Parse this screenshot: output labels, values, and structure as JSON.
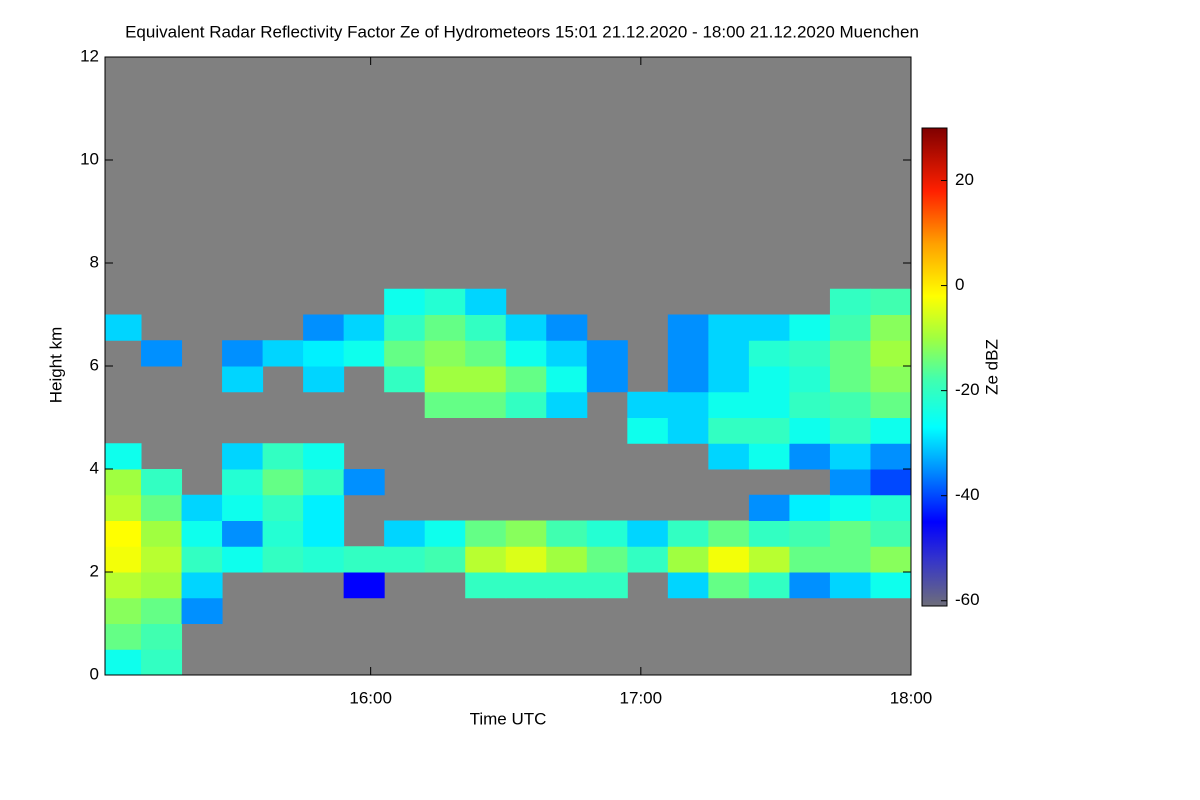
{
  "chart_data": {
    "type": "heatmap",
    "title": "Equivalent Radar Reflectivity Factor Ze of Hydrometeors   15:01 21.12.2020 - 18:00 21.12.2020 Muenchen",
    "x_label": "Time UTC",
    "y_label": "Height km",
    "colorbar_label": "Ze dBZ",
    "xlim": [
      15.0167,
      18.0
    ],
    "xticks": [
      {
        "value": 16,
        "label": "16:00"
      },
      {
        "value": 17,
        "label": "17:00"
      },
      {
        "value": 18,
        "label": "18:00"
      }
    ],
    "ylim": [
      0,
      12
    ],
    "yticks": [
      0,
      2,
      4,
      6,
      8,
      10,
      12
    ],
    "zlim": [
      -61,
      30
    ],
    "zticks": [
      -60,
      -40,
      -20,
      0,
      20
    ],
    "background": "#808080",
    "colorscale": [
      [
        -61,
        "#6e6e7a"
      ],
      [
        -52,
        "#3333cc"
      ],
      [
        -45,
        "#0000ff"
      ],
      [
        -35,
        "#0090ff"
      ],
      [
        -27,
        "#00ffff"
      ],
      [
        -18,
        "#40ffb0"
      ],
      [
        -10,
        "#a0ff40"
      ],
      [
        -2,
        "#ffff00"
      ],
      [
        8,
        "#ffa000"
      ],
      [
        18,
        "#ff2000"
      ],
      [
        30,
        "#800000"
      ]
    ],
    "x": [
      15.075,
      15.225,
      15.375,
      15.525,
      15.675,
      15.825,
      15.975,
      16.125,
      16.275,
      16.425,
      16.575,
      16.725,
      16.875,
      17.025,
      17.175,
      17.325,
      17.475,
      17.625,
      17.775,
      17.925
    ],
    "y": [
      0.25,
      0.75,
      1.25,
      1.75,
      2.25,
      2.75,
      3.25,
      3.75,
      4.25,
      4.75,
      5.25,
      5.75,
      6.25,
      6.75,
      7.25,
      7.75,
      8.25,
      8.75,
      9.25,
      9.75,
      10.25,
      10.75,
      11.25,
      11.75
    ],
    "values": [
      [
        -25,
        -20,
        null,
        null,
        null,
        null,
        null,
        null,
        null,
        null,
        null,
        null,
        null,
        null,
        null,
        null,
        null,
        null,
        null,
        null
      ],
      [
        -15,
        -18,
        null,
        null,
        null,
        null,
        null,
        null,
        null,
        null,
        null,
        null,
        null,
        null,
        null,
        null,
        null,
        null,
        null,
        null
      ],
      [
        -12,
        -15,
        -35,
        null,
        null,
        null,
        null,
        null,
        null,
        null,
        null,
        null,
        null,
        null,
        null,
        null,
        null,
        null,
        null,
        null
      ],
      [
        -8,
        -10,
        -30,
        null,
        null,
        null,
        -45,
        null,
        null,
        -20,
        -20,
        -20,
        -20,
        null,
        -30,
        -15,
        -20,
        -35,
        -30,
        -25
      ],
      [
        -3,
        -8,
        -20,
        -25,
        -20,
        -22,
        -20,
        -20,
        -18,
        -8,
        -5,
        -10,
        -15,
        -20,
        -10,
        -3,
        -8,
        -15,
        -15,
        -12
      ],
      [
        -2,
        -10,
        -25,
        -35,
        -22,
        -28,
        null,
        -30,
        -25,
        -15,
        -12,
        -18,
        -22,
        -30,
        -20,
        -15,
        -20,
        -18,
        -15,
        -18
      ],
      [
        -8,
        -15,
        -30,
        -25,
        -20,
        -28,
        null,
        null,
        null,
        null,
        null,
        null,
        null,
        null,
        null,
        null,
        -35,
        -28,
        -25,
        -22
      ],
      [
        -10,
        -20,
        null,
        -22,
        -15,
        -20,
        -35,
        null,
        null,
        null,
        null,
        null,
        null,
        null,
        null,
        null,
        null,
        null,
        -35,
        -40
      ],
      [
        -25,
        null,
        null,
        -30,
        -20,
        -25,
        null,
        null,
        null,
        null,
        null,
        null,
        null,
        null,
        null,
        -30,
        -25,
        -35,
        -30,
        -35
      ],
      [
        null,
        null,
        null,
        null,
        null,
        null,
        null,
        null,
        null,
        null,
        null,
        null,
        null,
        -25,
        -30,
        -20,
        -20,
        -25,
        -20,
        -25
      ],
      [
        null,
        null,
        null,
        null,
        null,
        null,
        null,
        null,
        -15,
        -15,
        -20,
        -30,
        null,
        -30,
        -30,
        -25,
        -25,
        -20,
        -18,
        -15
      ],
      [
        null,
        null,
        null,
        -30,
        null,
        -30,
        null,
        -20,
        -10,
        -10,
        -15,
        -25,
        -35,
        null,
        -35,
        -30,
        -25,
        -22,
        -15,
        -12
      ],
      [
        null,
        -35,
        null,
        -35,
        -30,
        -28,
        -25,
        -15,
        -12,
        -15,
        -25,
        -30,
        -35,
        null,
        -35,
        -30,
        -22,
        -20,
        -15,
        -10
      ],
      [
        -30,
        null,
        null,
        null,
        null,
        -35,
        -30,
        -20,
        -15,
        -20,
        -30,
        -35,
        null,
        null,
        -35,
        -30,
        -30,
        -25,
        -18,
        -12
      ],
      [
        null,
        null,
        null,
        null,
        null,
        null,
        null,
        -25,
        -22,
        -30,
        null,
        null,
        null,
        null,
        null,
        null,
        null,
        null,
        -20,
        -18
      ],
      [
        null,
        null,
        null,
        null,
        null,
        null,
        null,
        null,
        null,
        null,
        null,
        null,
        null,
        null,
        null,
        null,
        null,
        null,
        null,
        null
      ],
      [
        null,
        null,
        null,
        null,
        null,
        null,
        null,
        null,
        null,
        null,
        null,
        null,
        null,
        null,
        null,
        null,
        null,
        null,
        null,
        null
      ],
      [
        null,
        null,
        null,
        null,
        null,
        null,
        null,
        null,
        null,
        null,
        null,
        null,
        null,
        null,
        null,
        null,
        null,
        null,
        null,
        null
      ],
      [
        null,
        null,
        null,
        null,
        null,
        null,
        null,
        null,
        null,
        null,
        null,
        null,
        null,
        null,
        null,
        null,
        null,
        null,
        null,
        null
      ],
      [
        null,
        null,
        null,
        null,
        null,
        null,
        null,
        null,
        null,
        null,
        null,
        null,
        null,
        null,
        null,
        null,
        null,
        null,
        null,
        null
      ],
      [
        null,
        null,
        null,
        null,
        null,
        null,
        null,
        null,
        null,
        null,
        null,
        null,
        null,
        null,
        null,
        null,
        null,
        null,
        null,
        null
      ],
      [
        null,
        null,
        null,
        null,
        null,
        null,
        null,
        null,
        null,
        null,
        null,
        null,
        null,
        null,
        null,
        null,
        null,
        null,
        null,
        null
      ],
      [
        null,
        null,
        null,
        null,
        null,
        null,
        null,
        null,
        null,
        null,
        null,
        null,
        null,
        null,
        null,
        null,
        null,
        null,
        null,
        null
      ],
      [
        null,
        null,
        null,
        null,
        null,
        null,
        null,
        null,
        null,
        null,
        null,
        null,
        null,
        null,
        null,
        null,
        null,
        null,
        null,
        null
      ]
    ]
  }
}
